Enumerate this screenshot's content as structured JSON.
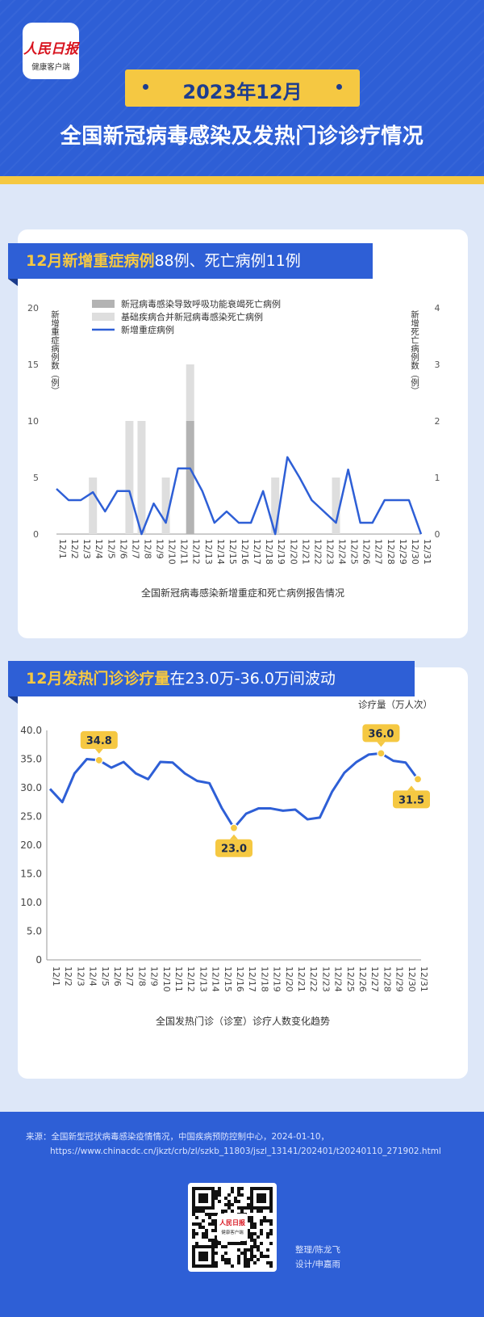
{
  "header": {
    "logo_line1": "人民日报",
    "logo_line2": "健康客户端",
    "date": "2023年12月",
    "title": "全国新冠病毒感染及发热门诊诊疗情况"
  },
  "colors": {
    "blue": "#2e5fd6",
    "dark_blue": "#1d3d8f",
    "yellow": "#f5c842",
    "bar_dark": "#b3b3b3",
    "bar_light": "#dedede"
  },
  "section1": {
    "banner_highlight": "12月新增重症病例",
    "banner_rest": "88例、死亡病例11例",
    "caption": "全国新冠病毒感染新增重症和死亡病例报告情况"
  },
  "section2": {
    "banner_highlight": "12月发热门诊诊疗量",
    "banner_rest": "在23.0万-36.0万间波动",
    "caption": "全国发热门诊（诊室）诊疗人数变化趋势"
  },
  "chart_data": [
    {
      "type": "bar",
      "categories": [
        "12/1",
        "12/2",
        "12/3",
        "12/4",
        "12/5",
        "12/6",
        "12/7",
        "12/8",
        "12/9",
        "12/10",
        "12/11",
        "12/12",
        "12/13",
        "12/14",
        "12/15",
        "12/16",
        "12/17",
        "12/18",
        "12/19",
        "12/20",
        "12/21",
        "12/22",
        "12/23",
        "12/24",
        "12/25",
        "12/26",
        "12/27",
        "12/28",
        "12/29",
        "12/30",
        "12/31"
      ],
      "ylabel_left": "新增重症病例数（例）",
      "ylabel_right": "新增死亡病例数（例）",
      "y_left_ticks": [
        "0",
        "5",
        "10",
        "15",
        "20"
      ],
      "y_right_ticks": [
        "0",
        "1",
        "2",
        "3",
        "4"
      ],
      "ylim_left": [
        0,
        20
      ],
      "ylim_right": [
        0,
        4
      ],
      "legend": [
        "新冠病毒感染导致呼吸功能衰竭死亡病例",
        "基础疾病合并新冠病毒感染死亡病例",
        "新增重症病例"
      ],
      "series": [
        {
          "name": "新冠病毒感染导致呼吸功能衰竭死亡病例",
          "kind": "bar",
          "axis": "right",
          "values": [
            0,
            0,
            0,
            0,
            0,
            0,
            0,
            0,
            0,
            0,
            0,
            2,
            0,
            0,
            0,
            0,
            0,
            0,
            0,
            0,
            0,
            0,
            0,
            0,
            0,
            0,
            0,
            0,
            0,
            0,
            0
          ]
        },
        {
          "name": "基础疾病合并新冠病毒感染死亡病例",
          "kind": "bar",
          "axis": "right",
          "values": [
            0,
            0,
            0,
            1,
            0,
            0,
            2,
            2,
            0,
            1,
            0,
            1,
            0,
            0,
            0,
            0,
            0,
            0,
            1,
            0,
            0,
            0,
            0,
            1,
            0,
            0,
            0,
            0,
            0,
            0,
            0
          ]
        },
        {
          "name": "新增重症病例",
          "kind": "line",
          "axis": "left",
          "values": [
            4,
            3,
            3,
            3.7,
            2,
            3.8,
            3.8,
            0,
            2.7,
            1,
            5.8,
            5.8,
            3.8,
            1,
            2,
            1,
            1,
            3.8,
            0,
            6.8,
            5,
            3,
            2,
            1,
            5.7,
            1,
            1,
            3,
            3,
            3,
            0
          ]
        }
      ]
    },
    {
      "type": "line",
      "categories": [
        "12/1",
        "12/2",
        "12/3",
        "12/4",
        "12/5",
        "12/6",
        "12/7",
        "12/8",
        "12/9",
        "12/10",
        "12/11",
        "12/12",
        "12/13",
        "12/14",
        "12/15",
        "12/16",
        "12/17",
        "12/18",
        "12/19",
        "12/20",
        "12/21",
        "12/22",
        "12/23",
        "12/24",
        "12/25",
        "12/26",
        "12/27",
        "12/28",
        "12/29",
        "12/30",
        "12/31"
      ],
      "ylabel": "诊疗量（万人次）",
      "y_ticks": [
        "0",
        "5.0",
        "10.0",
        "15.0",
        "20.0",
        "25.0",
        "30.0",
        "35.0",
        "40.0"
      ],
      "ylim": [
        0,
        40
      ],
      "series": [
        {
          "name": "诊疗量",
          "values": [
            29.8,
            27.5,
            32.5,
            35,
            34.8,
            33.5,
            34.5,
            32.5,
            31.5,
            34.5,
            34.4,
            32.5,
            31.2,
            30.8,
            26.5,
            23.0,
            25.5,
            26.4,
            26.4,
            26,
            26.2,
            24.5,
            24.8,
            29.3,
            32.6,
            34.5,
            35.8,
            36.0,
            34.7,
            34.4,
            31.5
          ]
        }
      ],
      "annotations": [
        {
          "category": "12/5",
          "label": "34.8"
        },
        {
          "category": "12/16",
          "label": "23.0"
        },
        {
          "category": "12/28",
          "label": "36.0"
        },
        {
          "category": "12/31",
          "label": "31.5"
        }
      ]
    }
  ],
  "footer": {
    "source_line1": "来源：全国新型冠状病毒感染疫情情况，中国疾病预防控制中心，2024-01-10，",
    "source_line2": "https://www.chinacdc.cn/jkzt/crb/zl/szkb_11803/jszl_13141/202401/t20240110_271902.html",
    "qr_label1": "人民日报",
    "qr_label2": "健康客户端",
    "credit_editor": "整理/陈龙飞",
    "credit_design": "设计/申嘉雨"
  }
}
